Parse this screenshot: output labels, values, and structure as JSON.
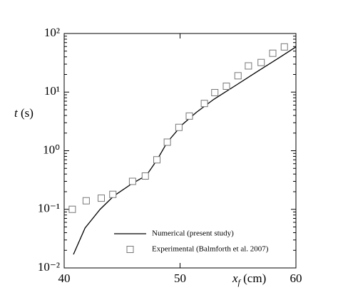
{
  "chart_data": {
    "type": "line",
    "x_label": {
      "symbol": "x",
      "subscript": "f",
      "unit": "(cm)"
    },
    "y_label": {
      "symbol": "t",
      "unit": "(s)"
    },
    "series": [
      {
        "name": "Numerical (present study)",
        "color": "#000000",
        "mode": "line",
        "x": [
          40.8,
          41.8,
          43.1,
          44.3,
          45.8,
          47.1,
          48.0,
          48.9,
          50.2,
          51.4,
          52.9,
          54.8,
          56.6,
          58.5,
          60.0
        ],
        "values": [
          0.017,
          0.048,
          0.1,
          0.17,
          0.27,
          0.38,
          0.69,
          1.4,
          2.8,
          4.5,
          7.5,
          13,
          22,
          38,
          59
        ]
      },
      {
        "name": "Experimental (Balmforth et al. 2007)",
        "color": "#777777",
        "mode": "marker",
        "x": [
          40.7,
          41.9,
          43.2,
          44.2,
          45.9,
          47.0,
          48.0,
          48.9,
          49.9,
          50.8,
          52.1,
          53.0,
          54.0,
          55.0,
          55.9,
          57.0,
          58.0,
          59.0
        ],
        "values": [
          0.1,
          0.14,
          0.155,
          0.18,
          0.3,
          0.37,
          0.7,
          1.4,
          2.5,
          3.9,
          6.4,
          9.8,
          12.6,
          19,
          28,
          32,
          46,
          59
        ]
      }
    ],
    "xlim": [
      40,
      60
    ],
    "xticks": [
      40,
      50,
      60
    ],
    "ylim": [
      0.01,
      100
    ],
    "log_y": true,
    "yticks": [
      {
        "value": 0.01,
        "label": "10⁻²"
      },
      {
        "value": 0.1,
        "label": "10⁻¹"
      },
      {
        "value": 1,
        "label": "10⁰"
      },
      {
        "value": 10,
        "label": "10¹"
      },
      {
        "value": 100,
        "label": "10²"
      }
    ]
  }
}
